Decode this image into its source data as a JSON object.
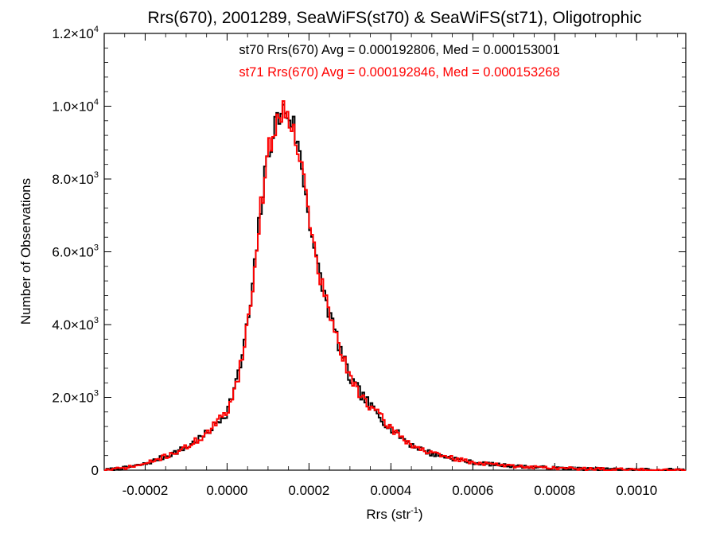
{
  "chart_data": {
    "type": "line",
    "title": "Rrs(670), 2001289, SeaWiFS(st70) & SeaWiFS(st71), Oligotrophic",
    "xlabel": "Rrs (str",
    "xlabel_sup": "-1",
    "xlabel_end": ")",
    "ylabel": "Number of Observations",
    "xlim": [
      -0.0003,
      0.00112
    ],
    "ylim": [
      0,
      12000
    ],
    "x_ticks": [
      -0.0002,
      0.0,
      0.0002,
      0.0004,
      0.0006,
      0.0008,
      0.001
    ],
    "x_tick_labels": [
      "-0.0002",
      "0.0000",
      "0.0002",
      "0.0004",
      "0.0006",
      "0.0008",
      "0.0010"
    ],
    "y_ticks": [
      0,
      2000,
      4000,
      6000,
      8000,
      10000,
      12000
    ],
    "y_tick_labels": [
      {
        "base": "0",
        "exp": ""
      },
      {
        "base": "2.0×10",
        "exp": "3"
      },
      {
        "base": "4.0×10",
        "exp": "3"
      },
      {
        "base": "6.0×10",
        "exp": "3"
      },
      {
        "base": "8.0×10",
        "exp": "3"
      },
      {
        "base": "1.0×10",
        "exp": "4"
      },
      {
        "base": "1.2×10",
        "exp": "4"
      }
    ],
    "legend_entries": [
      {
        "text": "st70 Rrs(670) Avg = 0.000192806, Med = 0.000153001",
        "color": "#000000"
      },
      {
        "text": "st71 Rrs(670) Avg = 0.000192846, Med = 0.000153268",
        "color": "#ff0000"
      }
    ],
    "bin_width": 5e-06,
    "profile_x": [
      -0.0003,
      -0.00025,
      -0.0002,
      -0.00015,
      -0.0001,
      -5e-05,
      0.0,
      3e-05,
      6e-05,
      8e-05,
      0.0001,
      0.00012,
      0.00014,
      0.00016,
      0.00018,
      0.0002,
      0.00022,
      0.00025,
      0.00028,
      0.0003,
      0.00035,
      0.0004,
      0.00045,
      0.0005,
      0.0006,
      0.0007,
      0.0008,
      0.0009,
      0.001,
      0.00112
    ],
    "profile_y": [
      0,
      60,
      170,
      380,
      620,
      1000,
      1600,
      2700,
      4700,
      7000,
      8700,
      9600,
      9900,
      9600,
      8500,
      7000,
      5600,
      4300,
      3200,
      2500,
      1750,
      1150,
      700,
      450,
      210,
      110,
      60,
      30,
      15,
      0
    ],
    "series": [
      {
        "name": "st70",
        "color": "#000000",
        "seed": 7
      },
      {
        "name": "st71",
        "color": "#ff0000",
        "seed": 71
      }
    ],
    "grid": false,
    "legend_position": "top-center"
  }
}
